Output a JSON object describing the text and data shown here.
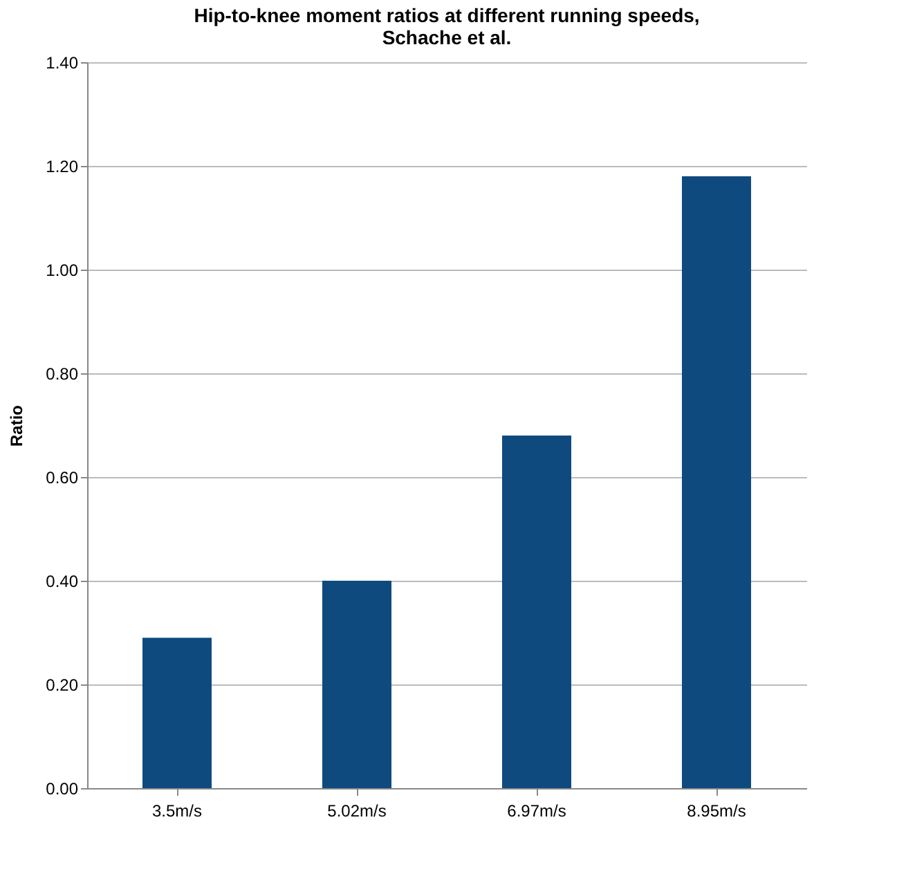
{
  "chart_data": {
    "type": "bar",
    "title": [
      "Hip-to-knee moment ratios at different running speeds,",
      "Schache et al."
    ],
    "ylabel": "Ratio",
    "categories": [
      "3.5m/s",
      "5.02m/s",
      "6.97m/s",
      "8.95m/s"
    ],
    "values": [
      0.29,
      0.4,
      0.68,
      1.18
    ],
    "color": "#0e4a7e",
    "ylim": [
      0,
      1.4
    ],
    "yticks": [
      {
        "value": 0,
        "label": "0.00"
      },
      {
        "value": 0.2,
        "label": "0.20"
      },
      {
        "value": 0.4,
        "label": "0.40"
      },
      {
        "value": 0.6,
        "label": "0.60"
      },
      {
        "value": 0.8,
        "label": "0.80"
      },
      {
        "value": 1.0,
        "label": "1.00"
      },
      {
        "value": 1.2,
        "label": "1.20"
      },
      {
        "value": 1.4,
        "label": "1.40"
      }
    ],
    "grid": "y"
  }
}
